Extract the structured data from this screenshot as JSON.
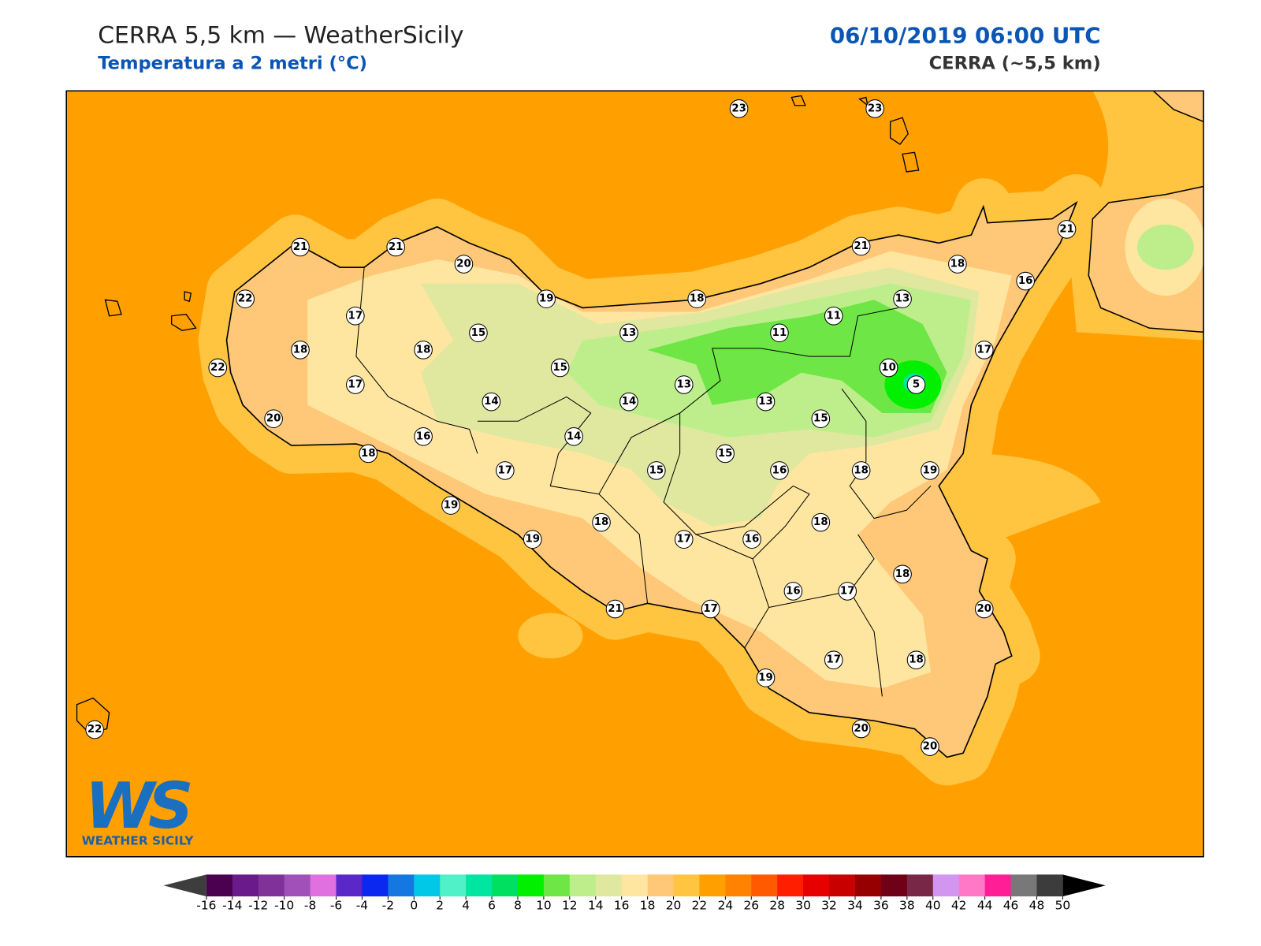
{
  "header": {
    "title": "CERRA 5,5 km — WeatherSicily",
    "subtitle": "Temperatura a 2 metri (°C)",
    "date": "06/10/2019 06:00 UTC",
    "model": "CERRA (~5,5 km)"
  },
  "stations": [
    23,
    23,
    21,
    21,
    20,
    21,
    21,
    22,
    17,
    19,
    18,
    18,
    16,
    18,
    18,
    15,
    13,
    11,
    13,
    11,
    22,
    17,
    15,
    13,
    10,
    5,
    17,
    20,
    14,
    14,
    13,
    15,
    16,
    14,
    18,
    17,
    15,
    15,
    16,
    18,
    19,
    19,
    18,
    18,
    19,
    17,
    16,
    18,
    16,
    17,
    20,
    21,
    17,
    17,
    18,
    19,
    20,
    20,
    22
  ],
  "colorbar": {
    "ticks": [
      -16,
      -14,
      -12,
      -10,
      -8,
      -6,
      -4,
      -2,
      0,
      2,
      4,
      6,
      8,
      10,
      12,
      14,
      16,
      18,
      20,
      22,
      24,
      26,
      28,
      30,
      32,
      34,
      36,
      38,
      40,
      42,
      44,
      46,
      48,
      50
    ],
    "colors": [
      "#4b0050",
      "#6a1a8a",
      "#7f3399",
      "#a050b8",
      "#e070e0",
      "#5a28c8",
      "#0a28f0",
      "#1478e0",
      "#00c8e6",
      "#50f0c8",
      "#00e6a0",
      "#00e060",
      "#00f000",
      "#6ee646",
      "#beee8c",
      "#e0e8a0",
      "#ffe6a0",
      "#ffc878",
      "#ffc440",
      "#ffa000",
      "#ff8200",
      "#ff5a00",
      "#ff1e00",
      "#e60000",
      "#c80000",
      "#960000",
      "#6e0018",
      "#782846",
      "#d296f0",
      "#ff78c8",
      "#ff1e96",
      "#787878",
      "#3c3c3c"
    ],
    "under": "#3d3d3d",
    "over": "#000000"
  },
  "logo": {
    "mark": "WS",
    "text": "WEATHER SICILY"
  }
}
